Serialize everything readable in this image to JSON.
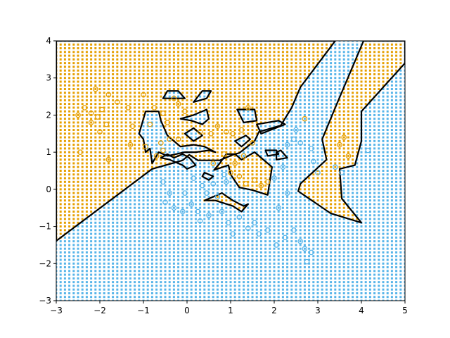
{
  "chart_data": {
    "type": "scatter",
    "title": "",
    "xlabel": "",
    "ylabel": "",
    "xlim": [
      -3,
      5
    ],
    "ylim": [
      -3,
      4
    ],
    "grid": false,
    "xticks": [
      {
        "value": -3,
        "label": "−3"
      },
      {
        "value": -2,
        "label": "−2"
      },
      {
        "value": -1,
        "label": "−1"
      },
      {
        "value": 0,
        "label": "0"
      },
      {
        "value": 1,
        "label": "1"
      },
      {
        "value": 2,
        "label": "2"
      },
      {
        "value": 3,
        "label": "3"
      },
      {
        "value": 4,
        "label": "4"
      },
      {
        "value": 5,
        "label": "5"
      }
    ],
    "yticks": [
      {
        "value": -3,
        "label": "−3"
      },
      {
        "value": -2,
        "label": "−2"
      },
      {
        "value": -1,
        "label": "−1"
      },
      {
        "value": 0,
        "label": "0"
      },
      {
        "value": 1,
        "label": "1"
      },
      {
        "value": 2,
        "label": "2"
      },
      {
        "value": 3,
        "label": "3"
      },
      {
        "value": 4,
        "label": "4"
      }
    ],
    "colors": {
      "class_orange": "#E69F00",
      "class_blue": "#56B4E9",
      "boundary": "#000000"
    },
    "background_grid_step": 0.1,
    "regions": [
      {
        "class": "orange",
        "role": "main",
        "polygon": [
          [
            -3,
            -1.39
          ],
          [
            -0.8,
            0.55
          ],
          [
            -0.1,
            0.78
          ],
          [
            0.05,
            0.93
          ],
          [
            0.25,
            0.78
          ],
          [
            0.5,
            0.78
          ],
          [
            0.75,
            0.78
          ],
          [
            1.05,
            0.93
          ],
          [
            1.2,
            0.98
          ],
          [
            1.55,
            1.3
          ],
          [
            1.65,
            1.55
          ],
          [
            2.15,
            1.72
          ],
          [
            2.4,
            2.2
          ],
          [
            2.6,
            2.75
          ],
          [
            3.4,
            4
          ],
          [
            -3,
            4
          ]
        ]
      },
      {
        "class": "orange",
        "role": "wedge",
        "polygon": [
          [
            4.05,
            4
          ],
          [
            3.4,
            2.2
          ],
          [
            3.1,
            1.35
          ],
          [
            3.2,
            0.8
          ],
          [
            2.6,
            0.15
          ],
          [
            2.55,
            -0.05
          ],
          [
            3.3,
            -0.65
          ],
          [
            4.0,
            -0.9
          ],
          [
            3.55,
            -0.25
          ],
          [
            3.5,
            0.55
          ],
          [
            3.85,
            0.65
          ],
          [
            4.0,
            1.3
          ],
          [
            4.0,
            2.1
          ],
          [
            5,
            3.4
          ],
          [
            5,
            4
          ]
        ]
      },
      {
        "class": "orange",
        "role": "island",
        "polygon": [
          [
            0.62,
            0.52
          ],
          [
            0.95,
            0.65
          ],
          [
            1.0,
            0.4
          ],
          [
            1.2,
            0.05
          ],
          [
            1.5,
            -0.02
          ],
          [
            1.85,
            -0.15
          ],
          [
            1.95,
            0.6
          ],
          [
            1.55,
            1.0
          ],
          [
            1.25,
            0.8
          ],
          [
            1.1,
            0.95
          ],
          [
            0.9,
            0.95
          ],
          [
            0.75,
            0.7
          ]
        ]
      },
      {
        "class": "orange",
        "role": "island",
        "polygon": [
          [
            0.4,
            -0.3
          ],
          [
            0.8,
            -0.1
          ],
          [
            1.05,
            -0.3
          ],
          [
            1.3,
            -0.45
          ],
          [
            1.4,
            -0.4
          ],
          [
            1.25,
            -0.6
          ],
          [
            1.05,
            -0.45
          ],
          [
            0.65,
            -0.3
          ]
        ]
      },
      {
        "class": "blue",
        "role": "island",
        "polygon": [
          [
            -1.1,
            1.5
          ],
          [
            -0.95,
            2.1
          ],
          [
            -0.65,
            2.1
          ],
          [
            -0.6,
            1.85
          ],
          [
            -0.45,
            1.45
          ],
          [
            -0.15,
            1.15
          ],
          [
            0.15,
            1.2
          ],
          [
            0.4,
            1.15
          ],
          [
            0.65,
            1.0
          ],
          [
            0.5,
            1.05
          ],
          [
            0.2,
            1.0
          ],
          [
            -0.05,
            1.0
          ],
          [
            -0.25,
            0.95
          ],
          [
            -0.45,
            0.9
          ],
          [
            -0.65,
            1.0
          ],
          [
            -0.8,
            0.7
          ],
          [
            -0.85,
            1.1
          ],
          [
            -0.95,
            1.0
          ],
          [
            -1.0,
            1.35
          ]
        ]
      },
      {
        "class": "blue",
        "role": "island",
        "polygon": [
          [
            -0.6,
            0.85
          ],
          [
            -0.45,
            0.95
          ],
          [
            -0.3,
            0.85
          ],
          [
            -0.1,
            0.95
          ],
          [
            0.05,
            0.85
          ],
          [
            0.2,
            0.65
          ],
          [
            0.0,
            0.55
          ],
          [
            -0.1,
            0.65
          ],
          [
            -0.4,
            0.8
          ]
        ]
      },
      {
        "class": "blue",
        "role": "island",
        "polygon": [
          [
            -0.55,
            2.45
          ],
          [
            -0.45,
            2.65
          ],
          [
            -0.2,
            2.65
          ],
          [
            -0.05,
            2.45
          ]
        ]
      },
      {
        "class": "blue",
        "role": "island",
        "polygon": [
          [
            0.15,
            2.35
          ],
          [
            0.35,
            2.65
          ],
          [
            0.55,
            2.65
          ],
          [
            0.45,
            2.45
          ]
        ]
      },
      {
        "class": "blue",
        "role": "island",
        "polygon": [
          [
            -0.15,
            1.9
          ],
          [
            0.15,
            2.0
          ],
          [
            0.45,
            2.15
          ],
          [
            0.5,
            1.9
          ],
          [
            0.35,
            1.75
          ],
          [
            0.1,
            1.85
          ]
        ]
      },
      {
        "class": "blue",
        "role": "island",
        "polygon": [
          [
            -0.05,
            1.5
          ],
          [
            0.15,
            1.65
          ],
          [
            0.35,
            1.45
          ],
          [
            0.15,
            1.3
          ]
        ]
      },
      {
        "class": "blue",
        "role": "island",
        "polygon": [
          [
            1.15,
            2.15
          ],
          [
            1.55,
            2.15
          ],
          [
            1.6,
            1.85
          ],
          [
            1.3,
            1.8
          ]
        ]
      },
      {
        "class": "blue",
        "role": "island",
        "polygon": [
          [
            1.1,
            1.3
          ],
          [
            1.35,
            1.45
          ],
          [
            1.45,
            1.35
          ],
          [
            1.25,
            1.15
          ]
        ]
      },
      {
        "class": "blue",
        "role": "island",
        "polygon": [
          [
            1.6,
            1.75
          ],
          [
            2.1,
            1.85
          ],
          [
            2.25,
            1.75
          ],
          [
            1.7,
            1.5
          ]
        ]
      },
      {
        "class": "blue",
        "role": "island",
        "polygon": [
          [
            1.8,
            1.05
          ],
          [
            2.05,
            1.05
          ],
          [
            2.1,
            0.95
          ],
          [
            1.85,
            0.9
          ]
        ]
      },
      {
        "class": "blue",
        "role": "island",
        "polygon": [
          [
            2.05,
            1.0
          ],
          [
            2.15,
            1.05
          ],
          [
            2.3,
            0.85
          ],
          [
            2.05,
            0.8
          ]
        ]
      },
      {
        "class": "blue",
        "role": "island",
        "polygon": [
          [
            0.4,
            0.45
          ],
          [
            0.6,
            0.35
          ],
          [
            0.5,
            0.25
          ],
          [
            0.35,
            0.35
          ]
        ]
      }
    ],
    "series": [
      {
        "class": "orange",
        "marker": "circle",
        "points": [
          [
            -2.5,
            2.0
          ],
          [
            -2.35,
            2.2
          ],
          [
            -2.2,
            2.05
          ],
          [
            -2.05,
            1.95
          ],
          [
            -1.95,
            2.15
          ],
          [
            -2.1,
            2.7
          ],
          [
            -1.8,
            2.55
          ],
          [
            -1.6,
            2.35
          ],
          [
            -1.35,
            2.2
          ],
          [
            -1.25,
            1.7
          ],
          [
            -1.0,
            2.55
          ],
          [
            -0.85,
            1.75
          ],
          [
            -0.75,
            2.2
          ],
          [
            -0.55,
            2.05
          ],
          [
            -0.45,
            1.8
          ],
          [
            -0.3,
            2.45
          ],
          [
            -0.2,
            2.3
          ],
          [
            -0.05,
            2.1
          ],
          [
            -2.0,
            1.55
          ],
          [
            -1.85,
            1.75
          ],
          [
            -2.2,
            1.8
          ],
          [
            -2.45,
            1.0
          ],
          [
            -1.8,
            0.8
          ],
          [
            -1.3,
            1.2
          ],
          [
            -0.95,
            1.15
          ],
          [
            -0.6,
            1.25
          ],
          [
            -0.4,
            1.35
          ],
          [
            -0.2,
            1.35
          ],
          [
            0.3,
            1.55
          ],
          [
            0.55,
            1.5
          ],
          [
            0.7,
            1.7
          ],
          [
            0.9,
            1.55
          ],
          [
            1.05,
            1.5
          ],
          [
            1.25,
            1.6
          ],
          [
            1.4,
            2.2
          ],
          [
            1.5,
            1.25
          ],
          [
            1.3,
            0.9
          ],
          [
            1.1,
            0.7
          ],
          [
            1.0,
            0.45
          ],
          [
            1.2,
            0.35
          ],
          [
            1.35,
            0.15
          ],
          [
            1.55,
            0.25
          ],
          [
            1.7,
            0.1
          ],
          [
            1.85,
            0.2
          ],
          [
            0.6,
            0.7
          ],
          [
            0.85,
            0.95
          ],
          [
            -0.7,
            0.9
          ],
          [
            -0.55,
            1.05
          ],
          [
            2.7,
            1.9
          ],
          [
            3.5,
            1.2
          ],
          [
            3.7,
            0.9
          ],
          [
            3.6,
            1.4
          ]
        ]
      },
      {
        "class": "blue",
        "marker": "circle",
        "points": [
          [
            -0.55,
            0.2
          ],
          [
            -0.4,
            -0.1
          ],
          [
            -0.3,
            -0.5
          ],
          [
            -0.1,
            -0.6
          ],
          [
            0.1,
            -0.4
          ],
          [
            0.25,
            -0.6
          ],
          [
            0.35,
            0.1
          ],
          [
            0.45,
            -0.1
          ],
          [
            0.6,
            0.15
          ],
          [
            0.7,
            -0.2
          ],
          [
            0.8,
            -0.6
          ],
          [
            0.95,
            -0.9
          ],
          [
            1.05,
            -1.2
          ],
          [
            1.2,
            -0.75
          ],
          [
            1.4,
            -1.05
          ],
          [
            1.55,
            -0.9
          ],
          [
            1.65,
            -1.2
          ],
          [
            1.85,
            -1.1
          ],
          [
            2.05,
            -1.5
          ],
          [
            2.25,
            -1.3
          ],
          [
            2.45,
            -1.1
          ],
          [
            2.6,
            -1.4
          ],
          [
            2.7,
            -1.6
          ],
          [
            2.75,
            -1.95
          ],
          [
            2.85,
            -1.7
          ],
          [
            0.9,
            0.2
          ],
          [
            0.85,
            0.4
          ],
          [
            0.15,
            0.3
          ],
          [
            -0.05,
            -0.1
          ],
          [
            0.5,
            -0.7
          ],
          [
            2.0,
            0.3
          ],
          [
            2.2,
            0.6
          ],
          [
            2.3,
            1.2
          ],
          [
            2.45,
            1.35
          ],
          [
            2.6,
            1.25
          ],
          [
            2.85,
            1.1
          ],
          [
            2.9,
            0.75
          ],
          [
            3.0,
            0.45
          ],
          [
            2.5,
            1.6
          ],
          [
            3.4,
            0.6
          ],
          [
            3.55,
            0.45
          ],
          [
            4.15,
            1.05
          ],
          [
            2.1,
            -0.5
          ],
          [
            2.3,
            -0.1
          ],
          [
            -0.5,
            -0.35
          ],
          [
            0.3,
            -0.85
          ]
        ]
      }
    ]
  }
}
